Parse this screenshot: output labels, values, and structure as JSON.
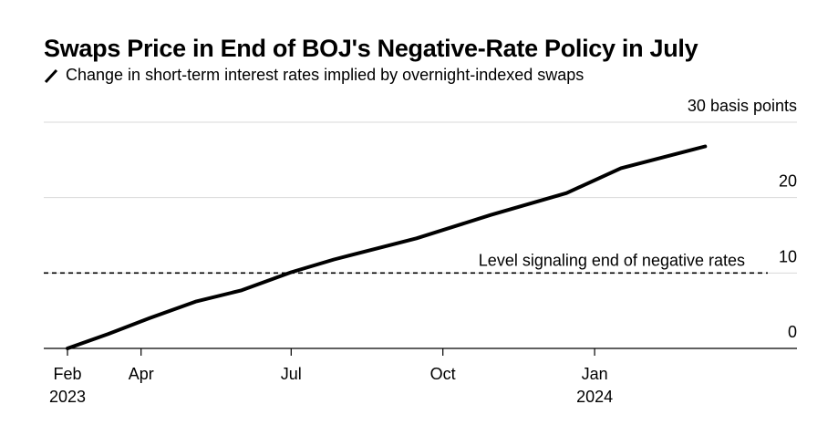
{
  "chart_data": {
    "type": "line",
    "title": "Swaps Price in End of BOJ's Negative-Rate Policy in July",
    "subtitle": "Change in short-term interest rates implied by overnight-indexed swaps",
    "ylabel_unit": "30 basis points",
    "ylim": [
      0,
      30
    ],
    "y_ticks": [
      {
        "value": 0,
        "label": "0"
      },
      {
        "value": 10,
        "label": "10"
      },
      {
        "value": 20,
        "label": "20"
      },
      {
        "value": 30,
        "label": "30 basis points"
      }
    ],
    "xlim": [
      "2023-02-01",
      "2024-04-15"
    ],
    "x_ticks": [
      {
        "date": "2023-02-01",
        "label": "Feb",
        "sublabel": "2023"
      },
      {
        "date": "2023-04-01",
        "label": "Apr",
        "sublabel": ""
      },
      {
        "date": "2023-07-01",
        "label": "Jul",
        "sublabel": ""
      },
      {
        "date": "2023-10-01",
        "label": "Oct",
        "sublabel": ""
      },
      {
        "date": "2024-01-01",
        "label": "Jan",
        "sublabel": "2024"
      }
    ],
    "grid": true,
    "series": [
      {
        "name": "",
        "color": "#000000",
        "points": [
          {
            "x": "2023-02-15",
            "y": 0
          },
          {
            "x": "2023-03-12",
            "y": 1.9
          },
          {
            "x": "2023-04-06",
            "y": 4.0
          },
          {
            "x": "2023-05-04",
            "y": 6.2
          },
          {
            "x": "2023-06-01",
            "y": 7.7
          },
          {
            "x": "2023-07-01",
            "y": 10.1
          },
          {
            "x": "2023-07-27",
            "y": 11.8
          },
          {
            "x": "2023-09-15",
            "y": 14.6
          },
          {
            "x": "2023-10-30",
            "y": 17.7
          },
          {
            "x": "2023-12-15",
            "y": 20.6
          },
          {
            "x": "2024-01-17",
            "y": 23.9
          },
          {
            "x": "2024-03-08",
            "y": 26.8
          }
        ]
      }
    ],
    "reference_line": {
      "y": 10,
      "label": "Level signaling end of negative rates",
      "style": "dashed"
    }
  }
}
